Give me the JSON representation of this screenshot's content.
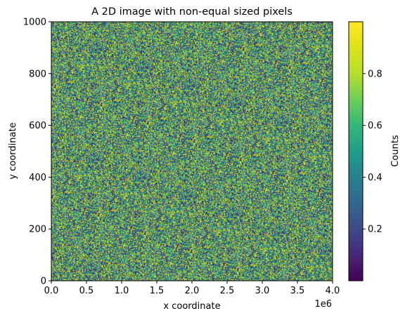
{
  "chart_data": {
    "type": "heatmap",
    "title": "A 2D image with non-equal sized pixels",
    "xlabel": "x coordinate",
    "ylabel": "y coordinate",
    "x_offset_label": "1e6",
    "xlim": [
      0,
      4000000
    ],
    "ylim": [
      0,
      1000
    ],
    "x_ticks": [
      0,
      500000,
      1000000,
      1500000,
      2000000,
      2500000,
      3000000,
      3500000,
      4000000
    ],
    "x_tick_labels": [
      "0.0",
      "0.5",
      "1.0",
      "1.5",
      "2.0",
      "2.5",
      "3.0",
      "3.5",
      "4.0"
    ],
    "y_ticks": [
      0,
      200,
      400,
      600,
      800,
      1000
    ],
    "y_tick_labels": [
      "0",
      "200",
      "400",
      "600",
      "800",
      "1000"
    ],
    "colormap": "viridis",
    "values_description_range": [
      0,
      1
    ],
    "colorbar": {
      "label": "Counts",
      "range": [
        0,
        1
      ],
      "ticks": [
        0.2,
        0.4,
        0.6,
        0.8
      ],
      "tick_labels": [
        "0.2",
        "0.4",
        "0.6",
        "0.8"
      ]
    },
    "grid": false
  }
}
